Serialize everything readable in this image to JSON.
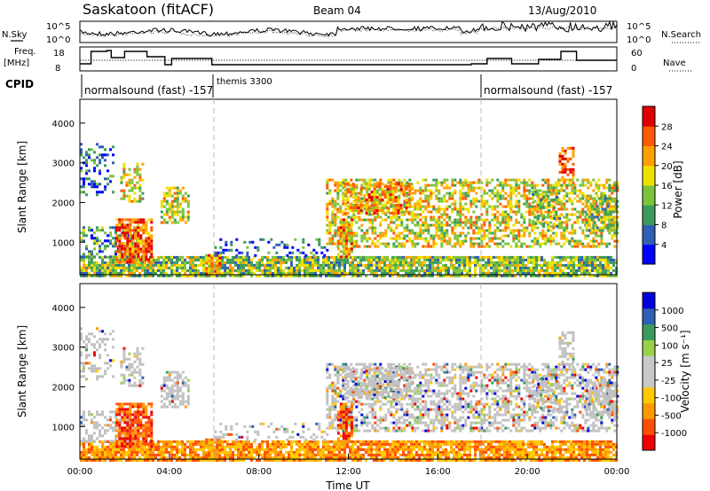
{
  "header": {
    "site": "Saskatoon (fitACF)",
    "beam": "Beam 04",
    "date": "13/Aug/2010"
  },
  "top_panels": {
    "nsky_label": "N.Sky",
    "nsky_ticks": [
      "10^5",
      "10^0"
    ],
    "nsearch_label": "N.Search",
    "nsearch_ticks": [
      "10^5",
      "10^0"
    ],
    "freq_label_1": "Freq.",
    "freq_label_2": "[MHz]",
    "freq_ticks": [
      "18",
      "8"
    ],
    "nave_label": "Nave",
    "nave_ticks": [
      "60",
      "0"
    ],
    "cpid_label": "CPID",
    "cpid_segments": [
      {
        "text": "normalsound (fast) -157",
        "start_hour": 0,
        "end_hour": 6
      },
      {
        "text": "themis 3300",
        "start_hour": 6,
        "end_hour": 18
      },
      {
        "text": "normalsound (fast) -157",
        "start_hour": 18,
        "end_hour": 24
      }
    ]
  },
  "colors": {
    "power": [
      "#0000ff",
      "#2e5fb4",
      "#3c9b5a",
      "#7cc33c",
      "#f0e000",
      "#ffa000",
      "#ff5a00",
      "#e00000"
    ],
    "velocity": [
      "#ee0000",
      "#ff5000",
      "#ff9900",
      "#ffc800",
      "#c8c8c8",
      "#c8c8c8",
      "#9ad04a",
      "#3c9b5a",
      "#2e5fb4",
      "#0000dd"
    ],
    "ground_scatter": "#c0c0c0"
  },
  "chart_data": [
    {
      "type": "heatmap",
      "panel": "power",
      "xlabel": "",
      "ylabel": "Slant Range [km]",
      "ylim": [
        180,
        4600
      ],
      "yticks": [
        "4000",
        "3000",
        "2000",
        "1000"
      ],
      "colorbar_label": "Power [dB]",
      "colorbar_ticks": [
        "28",
        "24",
        "20",
        "16",
        "12",
        "8",
        "4"
      ],
      "colorbar_range": [
        0,
        32
      ]
    },
    {
      "type": "heatmap",
      "panel": "velocity",
      "xlabel": "Time UT",
      "ylabel": "Slant Range [km]",
      "ylim": [
        180,
        4600
      ],
      "yticks": [
        "4000",
        "3000",
        "2000",
        "1000"
      ],
      "xticks": [
        "00:00",
        "04:00",
        "08:00",
        "12:00",
        "16:00",
        "20:00",
        "00:00"
      ],
      "xlim_hours": [
        0,
        24
      ],
      "colorbar_label": "Velocity [m s⁻¹]",
      "colorbar_ticks": [
        "1000",
        "500",
        "100",
        "25",
        "-25",
        "-100",
        "-500",
        "-1000"
      ]
    }
  ]
}
